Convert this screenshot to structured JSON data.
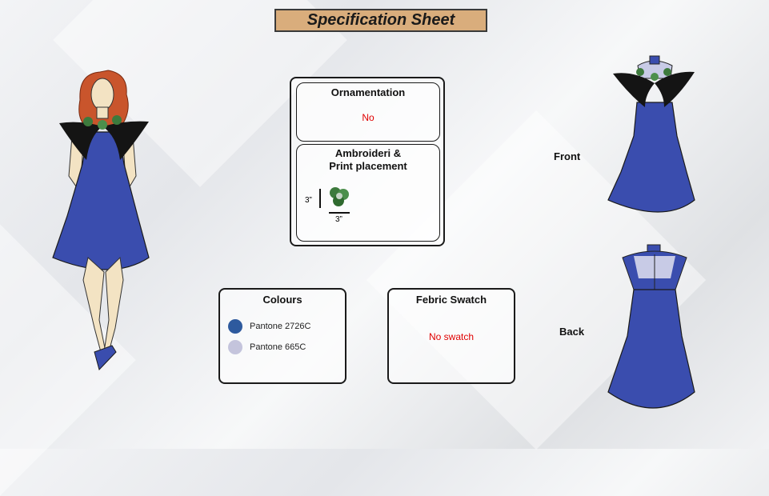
{
  "title": "Specification Sheet",
  "ornamentation": {
    "heading": "Ornamentation",
    "value": "No"
  },
  "placement": {
    "heading_line1": "Ambroideri &",
    "heading_line2": "Print placement",
    "height_dim": "3”",
    "width_dim": "3”"
  },
  "colours": {
    "heading": "Colours",
    "items": [
      {
        "name": "Pantone 2726C",
        "hex": "#2e5a9e"
      },
      {
        "name": "Pantone 665C",
        "hex": "#c4c4dc"
      }
    ]
  },
  "fabric": {
    "heading": "Febric Swatch",
    "value": "No swatch"
  },
  "views": {
    "front": "Front",
    "back": "Back"
  },
  "colors": {
    "dress": "#3a4dae",
    "wings": "#141414",
    "hair": "#c9552c",
    "skin": "#f3e3c3",
    "accent_red": "#e00000"
  }
}
